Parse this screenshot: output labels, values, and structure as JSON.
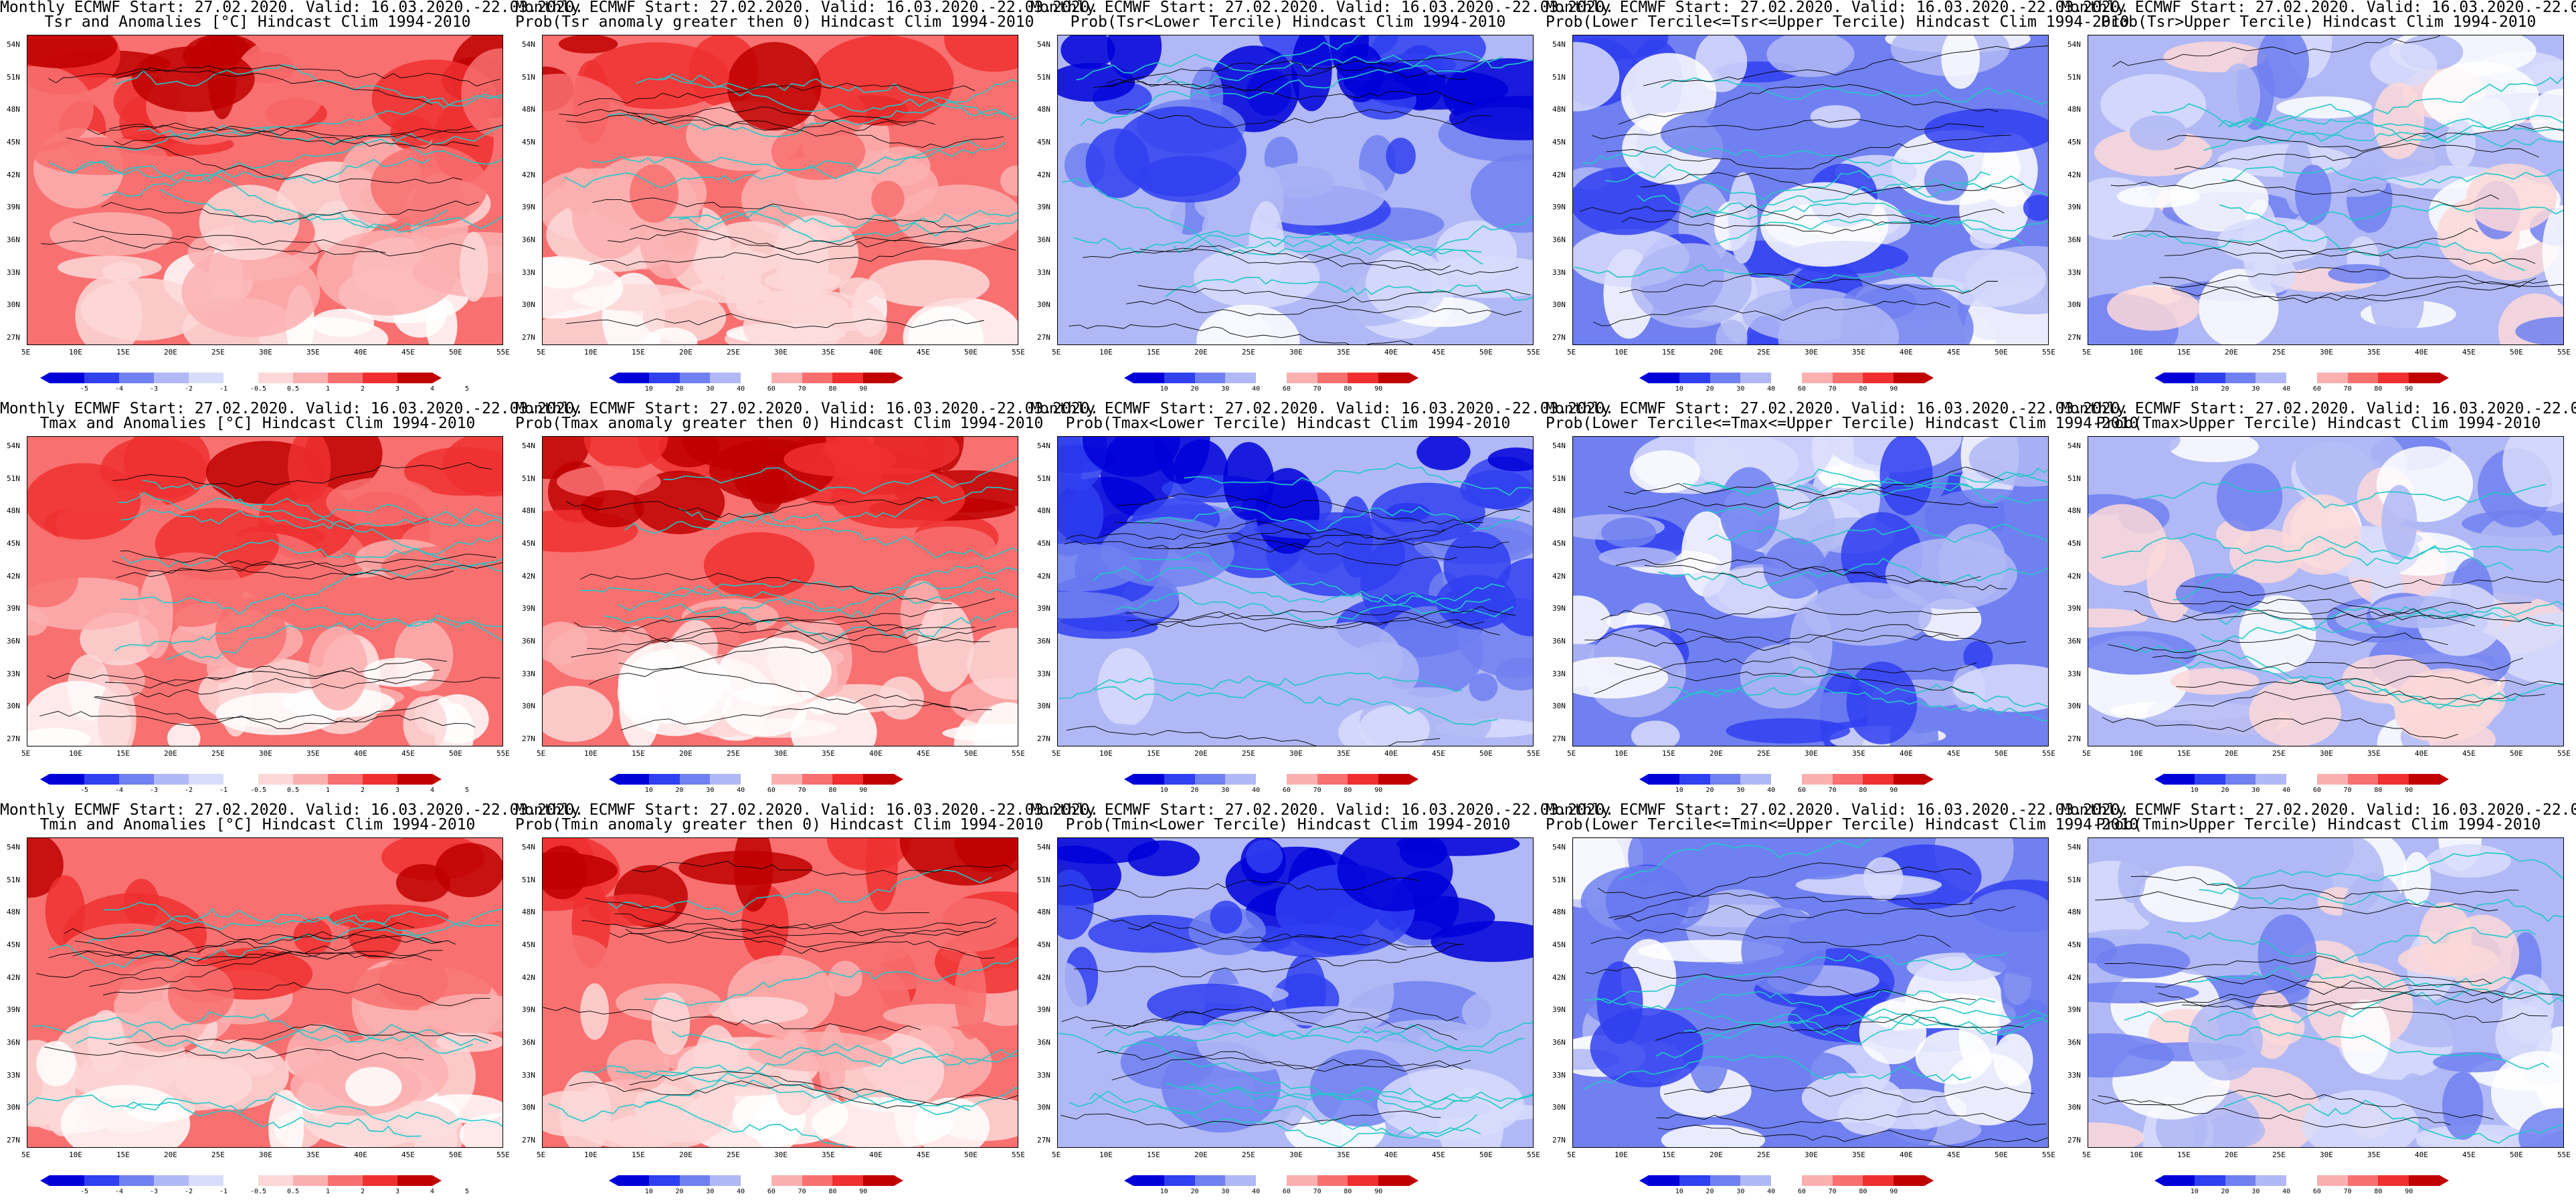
{
  "row_titles": {
    "header": "Monthly ECMWF Start: 27.02.2020. Valid: 16.03.2020.-22.03.2020."
  },
  "panels": [
    {
      "subtitle": "Tsr and Anomalies [°C] Hindcast Clim 1994-2010",
      "kind": "anomaly",
      "palette": "warm"
    },
    {
      "subtitle": "Prob(Tsr anomaly greater then 0) Hindcast Clim 1994-2010",
      "kind": "prob",
      "palette": "warm"
    },
    {
      "subtitle": "Prob(Tsr<Lower Tercile) Hindcast Clim 1994-2010",
      "kind": "prob",
      "palette": "cold-strong"
    },
    {
      "subtitle": "Prob(Lower Tercile<=Tsr<=Upper Tercile) Hindcast Clim 1994-2010",
      "kind": "prob",
      "palette": "cold-mid"
    },
    {
      "subtitle": "Prob(Tsr>Upper Tercile) Hindcast Clim 1994-2010",
      "kind": "prob",
      "palette": "cold-light"
    },
    {
      "subtitle": "Tmax and Anomalies [°C] Hindcast Clim 1994-2010",
      "kind": "anomaly",
      "palette": "warm"
    },
    {
      "subtitle": "Prob(Tmax anomaly greater then 0) Hindcast Clim 1994-2010",
      "kind": "prob",
      "palette": "warm"
    },
    {
      "subtitle": "Prob(Tmax<Lower Tercile) Hindcast Clim 1994-2010",
      "kind": "prob",
      "palette": "cold-strong"
    },
    {
      "subtitle": "Prob(Lower Tercile<=Tmax<=Upper Tercile) Hindcast Clim 1994-2010",
      "kind": "prob",
      "palette": "cold-mid"
    },
    {
      "subtitle": "Prob(Tmax>Upper Tercile) Hindcast Clim 1994-2010",
      "kind": "prob",
      "palette": "cold-light"
    },
    {
      "subtitle": "Tmin and Anomalies [°C] Hindcast Clim 1994-2010",
      "kind": "anomaly",
      "palette": "warm"
    },
    {
      "subtitle": "Prob(Tmin anomaly greater then 0) Hindcast Clim 1994-2010",
      "kind": "prob",
      "palette": "warm"
    },
    {
      "subtitle": "Prob(Tmin<Lower Tercile) Hindcast Clim 1994-2010",
      "kind": "prob",
      "palette": "cold-strong"
    },
    {
      "subtitle": "Prob(Lower Tercile<=Tmin<=Upper Tercile) Hindcast Clim 1994-2010",
      "kind": "prob",
      "palette": "cold-mid"
    },
    {
      "subtitle": "Prob(Tmin>Upper Tercile) Hindcast Clim 1994-2010",
      "kind": "prob",
      "palette": "cold-light"
    }
  ],
  "lat_labels": [
    "54N",
    "51N",
    "48N",
    "45N",
    "42N",
    "39N",
    "36N",
    "33N",
    "30N",
    "27N"
  ],
  "lon_labels": [
    "5E",
    "10E",
    "15E",
    "20E",
    "25E",
    "30E",
    "35E",
    "40E",
    "45E",
    "50E",
    "55E"
  ],
  "anomaly_colorbar": [
    "-5",
    "-4",
    "-3",
    "-2",
    "-1",
    "-0.5",
    "0.5",
    "1",
    "2",
    "3",
    "4",
    "5"
  ],
  "prob_colorbar": [
    "10",
    "20",
    "30",
    "40",
    "60",
    "70",
    "80",
    "90"
  ],
  "colors": {
    "dark_red": "#c00000",
    "red": "#f03030",
    "mid_red": "#f87070",
    "light_red": "#fbb0b0",
    "pale_red": "#fdd8d8",
    "white": "#ffffff",
    "pale_blue": "#d8dcfb",
    "light_blue": "#b0b8f5",
    "mid_blue": "#7080f0",
    "blue": "#3040f0",
    "dark_blue": "#0000d8",
    "coast": "#20c8c8",
    "contour": "#000000"
  }
}
